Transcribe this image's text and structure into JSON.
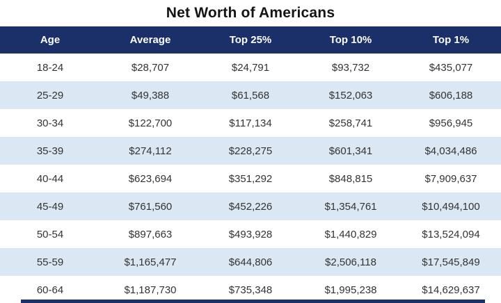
{
  "title": "Net Worth of Americans",
  "colors": {
    "header_bg": "#1b3068",
    "header_text": "#ffffff",
    "band_bg": "#dbe7f3",
    "row_bg": "#ffffff",
    "body_text": "#333333",
    "bottom_rule": "#1b3068"
  },
  "chart_data": {
    "type": "table",
    "title": "Net Worth of Americans",
    "columns": [
      "Age",
      "Average",
      "Top 25%",
      "Top 10%",
      "Top 1%"
    ],
    "rows": [
      [
        "18-24",
        "$28,707",
        "$24,791",
        "$93,732",
        "$435,077"
      ],
      [
        "25-29",
        "$49,388",
        "$61,568",
        "$152,063",
        "$606,188"
      ],
      [
        "30-34",
        "$122,700",
        "$117,134",
        "$258,741",
        "$956,945"
      ],
      [
        "35-39",
        "$274,112",
        "$228,275",
        "$601,341",
        "$4,034,486"
      ],
      [
        "40-44",
        "$623,694",
        "$351,292",
        "$848,815",
        "$7,909,637"
      ],
      [
        "45-49",
        "$761,560",
        "$452,226",
        "$1,354,761",
        "$10,494,100"
      ],
      [
        "50-54",
        "$897,663",
        "$493,928",
        "$1,440,829",
        "$13,524,094"
      ],
      [
        "55-59",
        "$1,165,477",
        "$644,806",
        "$2,506,118",
        "$17,545,849"
      ],
      [
        "60-64",
        "$1,187,730",
        "$735,348",
        "$1,995,238",
        "$14,629,637"
      ]
    ],
    "layout": {
      "banded_rows": "even rows shaded light blue",
      "column_alignment": "center",
      "grid": false
    }
  }
}
